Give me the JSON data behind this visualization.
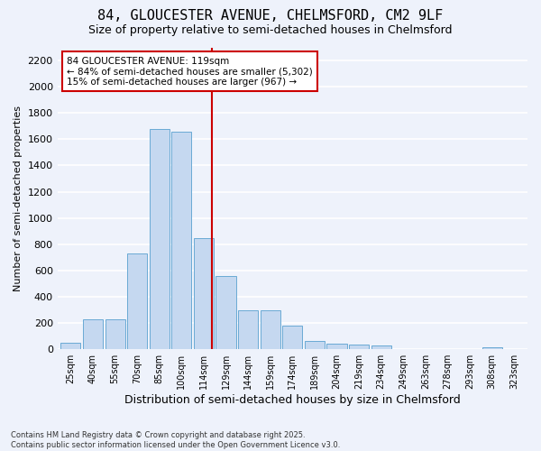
{
  "title1": "84, GLOUCESTER AVENUE, CHELMSFORD, CM2 9LF",
  "title2": "Size of property relative to semi-detached houses in Chelmsford",
  "xlabel": "Distribution of semi-detached houses by size in Chelmsford",
  "ylabel": "Number of semi-detached properties",
  "categories": [
    "25sqm",
    "40sqm",
    "55sqm",
    "70sqm",
    "85sqm",
    "100sqm",
    "114sqm",
    "129sqm",
    "144sqm",
    "159sqm",
    "174sqm",
    "189sqm",
    "204sqm",
    "219sqm",
    "234sqm",
    "249sqm",
    "263sqm",
    "278sqm",
    "293sqm",
    "308sqm",
    "323sqm"
  ],
  "values": [
    50,
    230,
    230,
    730,
    1680,
    1660,
    850,
    560,
    300,
    300,
    180,
    65,
    42,
    33,
    26,
    0,
    0,
    0,
    0,
    15,
    0
  ],
  "bar_color": "#c5d8f0",
  "bar_edge_color": "#6aaad4",
  "vline_color": "#cc0000",
  "vline_pos": 6.37,
  "annotation_text": "84 GLOUCESTER AVENUE: 119sqm\n← 84% of semi-detached houses are smaller (5,302)\n15% of semi-detached houses are larger (967) →",
  "annotation_box_color": "#ffffff",
  "annotation_box_edge": "#cc0000",
  "ylim": [
    0,
    2300
  ],
  "yticks": [
    0,
    200,
    400,
    600,
    800,
    1000,
    1200,
    1400,
    1600,
    1800,
    2000,
    2200
  ],
  "footnote1": "Contains HM Land Registry data © Crown copyright and database right 2025.",
  "footnote2": "Contains public sector information licensed under the Open Government Licence v3.0.",
  "background_color": "#eef2fb",
  "plot_bg_color": "#eef2fb",
  "grid_color": "#ffffff",
  "title1_fontsize": 11,
  "title2_fontsize": 9,
  "ylabel_fontsize": 8,
  "xlabel_fontsize": 9,
  "bar_width": 0.9
}
